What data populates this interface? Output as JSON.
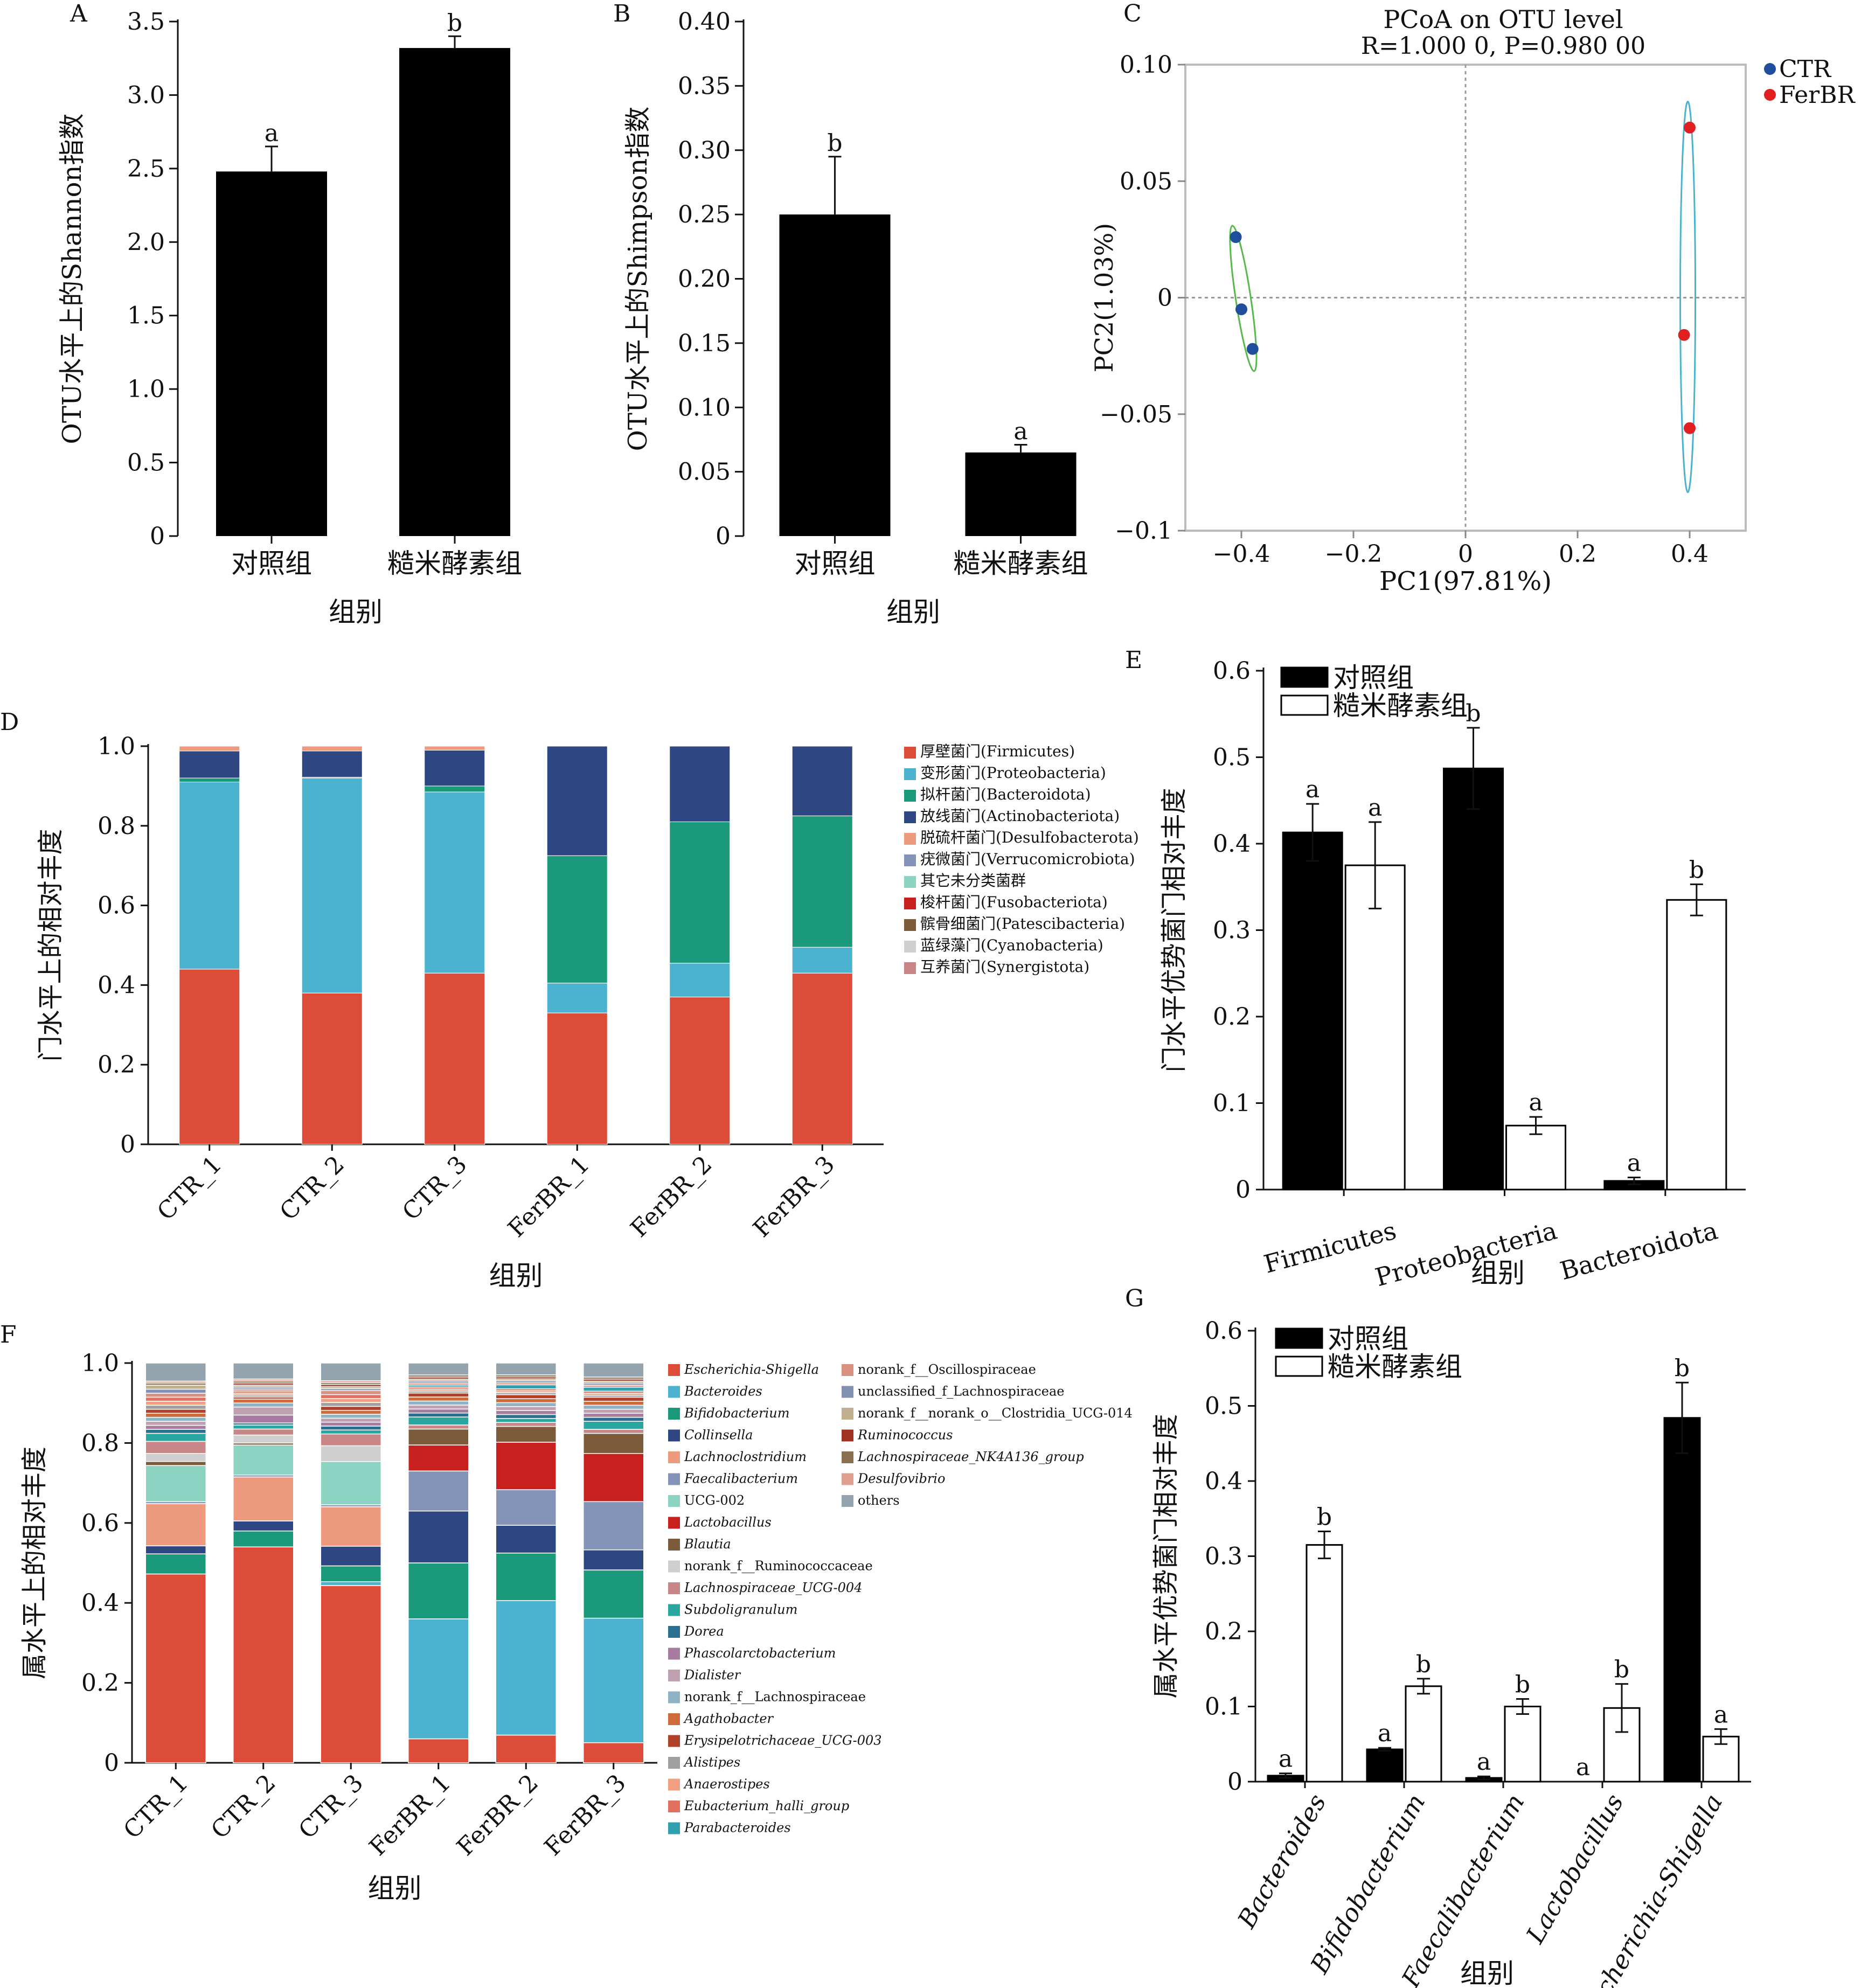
{
  "x_title": "组别",
  "chart_data": [
    {
      "panel": "A",
      "type": "bar",
      "ylabel": "OTU水平上的Shannon指数",
      "xlabel": "组别",
      "categories": [
        "对照组",
        "糙米酵素组"
      ],
      "values": [
        2.48,
        3.32
      ],
      "errors": [
        0.17,
        0.08
      ],
      "letters": [
        "a",
        "b"
      ],
      "ylim": [
        0,
        3.5
      ],
      "yticks": [
        "0",
        "0.5",
        "1.0",
        "1.5",
        "2.0",
        "2.5",
        "3.0",
        "3.5"
      ]
    },
    {
      "panel": "B",
      "type": "bar",
      "ylabel": "OTU水平上的Shimpson指数",
      "xlabel": "组别",
      "categories": [
        "对照组",
        "糙米酵素组"
      ],
      "values": [
        0.25,
        0.065
      ],
      "errors": [
        0.045,
        0.006
      ],
      "letters": [
        "b",
        "a"
      ],
      "ylim": [
        0,
        0.4
      ],
      "yticks": [
        "0",
        "0.05",
        "0.10",
        "0.15",
        "0.20",
        "0.25",
        "0.30",
        "0.35",
        "0.40"
      ]
    },
    {
      "panel": "C",
      "type": "scatter",
      "title": "PCoA on OTU level",
      "subtitle": "R=1.000 0, P=0.980 00",
      "xlabel": "PC1(97.81%)",
      "ylabel": "PC2(1.03%)",
      "xlim": [
        -0.5,
        0.5
      ],
      "ylim": [
        -0.1,
        0.1
      ],
      "xticks": [
        "−0.4",
        "−0.2",
        "0",
        "0.2",
        "0.4"
      ],
      "yticks": [
        "0.10",
        "0.05",
        "0",
        "−0.05",
        "−0.1"
      ],
      "series": [
        {
          "name": "CTR",
          "color": "#1f4e9c",
          "points": [
            [
              -0.41,
              0.026
            ],
            [
              -0.4,
              -0.005
            ],
            [
              -0.38,
              -0.022
            ]
          ]
        },
        {
          "name": "FerBR",
          "color": "#e02020",
          "points": [
            [
              0.4,
              0.073
            ],
            [
              0.39,
              -0.016
            ],
            [
              0.4,
              -0.056
            ]
          ]
        }
      ]
    },
    {
      "panel": "D",
      "type": "stacked-bar",
      "ylabel": "门水平上的相对丰度",
      "xlabel": "组别",
      "categories": [
        "CTR_1",
        "CTR_2",
        "CTR_3",
        "FerBR_1",
        "FerBR_2",
        "FerBR_3"
      ],
      "yticks": [
        "0",
        "0.2",
        "0.4",
        "0.6",
        "0.8",
        "1.0"
      ],
      "series": [
        {
          "name": "厚壁菌门(Firmicutes)",
          "color": "#dd4b39",
          "values": [
            0.44,
            0.38,
            0.43,
            0.33,
            0.37,
            0.43
          ]
        },
        {
          "name": "变形菌门(Proteobacteria)",
          "color": "#4bb3cf",
          "values": [
            0.47,
            0.54,
            0.455,
            0.075,
            0.085,
            0.065
          ]
        },
        {
          "name": "拟杆菌门(Bacteroidota)",
          "color": "#1a9a7a",
          "values": [
            0.01,
            0.002,
            0.015,
            0.32,
            0.355,
            0.33
          ]
        },
        {
          "name": "放线菌门(Actinobacteriota)",
          "color": "#2e4783",
          "values": [
            0.068,
            0.066,
            0.09,
            0.275,
            0.19,
            0.175
          ]
        },
        {
          "name": "脱硫杆菌门(Desulfobacterota)",
          "color": "#ed9a7e",
          "values": [
            0.012,
            0.012,
            0.01,
            0,
            0,
            0
          ]
        },
        {
          "name": "疣微菌门(Verrucomicrobiota)",
          "color": "#8494b8",
          "values": [
            0,
            0,
            0,
            0,
            0,
            0
          ]
        },
        {
          "name": "其它未分类菌群",
          "color": "#8dd3c2",
          "values": [
            0,
            0,
            0,
            0,
            0,
            0
          ]
        },
        {
          "name": "梭杆菌门(Fusobacteriota)",
          "color": "#c81f1f",
          "values": [
            0,
            0,
            0,
            0,
            0,
            0
          ]
        },
        {
          "name": "髌骨细菌门(Patescibacteria)",
          "color": "#7b5b3a",
          "values": [
            0,
            0,
            0,
            0,
            0,
            0
          ]
        },
        {
          "name": "蓝绿藻门(Cyanobacteria)",
          "color": "#cfcfcf",
          "values": [
            0,
            0,
            0,
            0,
            0,
            0
          ]
        },
        {
          "name": "互养菌门(Synergistota)",
          "color": "#c98686",
          "values": [
            0,
            0,
            0,
            0,
            0,
            0
          ]
        }
      ]
    },
    {
      "panel": "E",
      "type": "bar",
      "ylabel": "门水平优势菌门相对丰度",
      "xlabel": "组别",
      "categories": [
        "Firmicutes",
        "Proteobacteria",
        "Bacteroidota"
      ],
      "series": [
        {
          "name": "对照组",
          "values": [
            0.413,
            0.487,
            0.01
          ],
          "errors": [
            0.033,
            0.047,
            0.004
          ],
          "letters": [
            "a",
            "b",
            "a"
          ]
        },
        {
          "name": "糙米酵素组",
          "values": [
            0.375,
            0.074,
            0.335
          ],
          "errors": [
            0.05,
            0.01,
            0.018
          ],
          "letters": [
            "a",
            "a",
            "b"
          ]
        }
      ],
      "ylim": [
        0,
        0.6
      ],
      "yticks": [
        "0",
        "0.1",
        "0.2",
        "0.3",
        "0.4",
        "0.5",
        "0.6"
      ]
    },
    {
      "panel": "F",
      "type": "stacked-bar",
      "ylabel": "属水平上的相对丰度",
      "xlabel": "组别",
      "categories": [
        "CTR_1",
        "CTR_2",
        "CTR_3",
        "FerBR_1",
        "FerBR_2",
        "FerBR_3"
      ],
      "yticks": [
        "0",
        "0.2",
        "0.4",
        "0.6",
        "0.8",
        "1.0"
      ],
      "series": [
        {
          "name": "Escherichia-Shigella",
          "color": "#dd4b39",
          "values": [
            0.47,
            0.54,
            0.45,
            0.06,
            0.07,
            0.05
          ]
        },
        {
          "name": "Bacteroides",
          "color": "#4bb3cf",
          "values": [
            0.0,
            0.0,
            0.01,
            0.3,
            0.34,
            0.31
          ]
        },
        {
          "name": "Bifidobacterium",
          "color": "#1a9a7a",
          "values": [
            0.05,
            0.04,
            0.04,
            0.14,
            0.12,
            0.12
          ]
        },
        {
          "name": "Collinsella",
          "color": "#2e4783",
          "values": [
            0.02,
            0.025,
            0.05,
            0.13,
            0.07,
            0.05
          ]
        },
        {
          "name": "Lachnoclostridium",
          "color": "#ed9a7e",
          "values": [
            0.105,
            0.11,
            0.1,
            0.0,
            0.0,
            0.0
          ]
        },
        {
          "name": "Faecalibacterium",
          "color": "#8494b8",
          "values": [
            0.005,
            0.005,
            0.005,
            0.1,
            0.09,
            0.12
          ]
        },
        {
          "name": "UCG-002",
          "color": "#8dd3c2",
          "values": [
            0.09,
            0.075,
            0.11,
            0.0,
            0.0,
            0.0
          ]
        },
        {
          "name": "Lactobacillus",
          "color": "#c81f1f",
          "values": [
            0.0,
            0.0,
            0.0,
            0.065,
            0.12,
            0.12
          ]
        },
        {
          "name": "Blautia",
          "color": "#7b5b3a",
          "values": [
            0.01,
            0.005,
            0.0,
            0.04,
            0.04,
            0.05
          ]
        },
        {
          "name": "norank_f__Ruminococcaceae",
          "color": "#cfcfcf",
          "values": [
            0.02,
            0.02,
            0.04,
            0.0,
            0.0,
            0.0
          ]
        },
        {
          "name": "Lachnospiraceae_UCG-004",
          "color": "#c98686",
          "values": [
            0.03,
            0.015,
            0.03,
            0.01,
            0.01,
            0.01
          ]
        },
        {
          "name": "Subdoligranulum",
          "color": "#2aa6a0",
          "values": [
            0.02,
            0.01,
            0.01,
            0.02,
            0.01,
            0.02
          ]
        },
        {
          "name": "Dorea",
          "color": "#2a6f8f",
          "values": [
            0.01,
            0.005,
            0.01,
            0.01,
            0.01,
            0.01
          ]
        },
        {
          "name": "Phascolarctobacterium",
          "color": "#a87ca0",
          "values": [
            0.01,
            0.02,
            0.01,
            0.01,
            0.01,
            0.01
          ]
        },
        {
          "name": "Dialister",
          "color": "#bfa0b0",
          "values": [
            0.01,
            0.02,
            0.01,
            0.01,
            0.01,
            0.01
          ]
        },
        {
          "name": "norank_f__Lachnospiraceae",
          "color": "#8fb3c4",
          "values": [
            0.01,
            0.01,
            0.01,
            0.01,
            0.01,
            0.01
          ]
        },
        {
          "name": "Agathobacter",
          "color": "#cf6a3a",
          "values": [
            0.01,
            0.01,
            0.01,
            0.01,
            0.01,
            0.01
          ]
        },
        {
          "name": "Erysipelotrichaceae_UCG-003",
          "color": "#b0402a",
          "values": [
            0.01,
            0.005,
            0.01,
            0.01,
            0.01,
            0.01
          ]
        },
        {
          "name": "Alistipes",
          "color": "#a0a0a0",
          "values": [
            0.01,
            0.005,
            0.01,
            0.005,
            0.005,
            0.005
          ]
        },
        {
          "name": "Anaerostipes",
          "color": "#f0a080",
          "values": [
            0.01,
            0.005,
            0.01,
            0.005,
            0.005,
            0.005
          ]
        },
        {
          "name": "Eubacterium_halli_group",
          "color": "#e07060",
          "values": [
            0.01,
            0.005,
            0.01,
            0.005,
            0.005,
            0.005
          ]
        },
        {
          "name": "Parabacteroides",
          "color": "#30a0b0",
          "values": [
            0.0,
            0.0,
            0.0,
            0.005,
            0.01,
            0.01
          ]
        },
        {
          "name": "norank_f__Oscillospiraceae",
          "color": "#d89080",
          "values": [
            0.01,
            0.005,
            0.01,
            0.005,
            0.005,
            0.005
          ]
        },
        {
          "name": "unclassified_f_Lachnospiraceae",
          "color": "#8090b0",
          "values": [
            0.01,
            0.005,
            0.005,
            0.005,
            0.005,
            0.005
          ]
        },
        {
          "name": "norank_f__norank_o__Clostridia_UCG-014",
          "color": "#c0b090",
          "values": [
            0.01,
            0.005,
            0.005,
            0.005,
            0.005,
            0.005
          ]
        },
        {
          "name": "Ruminococcus",
          "color": "#a03020",
          "values": [
            0.0,
            0.005,
            0.005,
            0.005,
            0.005,
            0.005
          ]
        },
        {
          "name": "Lachnospiraceae_NK4A136_group",
          "color": "#8a7050",
          "values": [
            0.005,
            0.005,
            0.005,
            0.005,
            0.005,
            0.005
          ]
        },
        {
          "name": "Desulfovibrio",
          "color": "#e0a090",
          "values": [
            0.005,
            0.005,
            0.005,
            0.0,
            0.0,
            0.0
          ]
        },
        {
          "name": "others",
          "color": "#94a4ae",
          "values": [
            0.045,
            0.04,
            0.045,
            0.03,
            0.03,
            0.035
          ]
        }
      ]
    },
    {
      "panel": "G",
      "type": "bar",
      "ylabel": "属水平优势菌门相对丰度",
      "xlabel": "组别",
      "categories": [
        "Bacteroides",
        "Bifidobacterium",
        "Faecalibacterium",
        "Lactobacillus",
        "Escherichia-Shigella"
      ],
      "series": [
        {
          "name": "对照组",
          "values": [
            0.008,
            0.043,
            0.005,
            0.0,
            0.484
          ],
          "errors": [
            0.003,
            0.002,
            0.002,
            0.0,
            0.047
          ],
          "letters": [
            "a",
            "a",
            "a",
            "a",
            "b"
          ]
        },
        {
          "name": "糙米酵素组",
          "values": [
            0.315,
            0.127,
            0.1,
            0.098,
            0.06
          ],
          "errors": [
            0.018,
            0.01,
            0.01,
            0.032,
            0.01
          ],
          "letters": [
            "b",
            "b",
            "b",
            "b",
            "a"
          ]
        }
      ],
      "ylim": [
        0,
        0.6
      ],
      "yticks": [
        "0",
        "0.1",
        "0.2",
        "0.3",
        "0.4",
        "0.5",
        "0.6"
      ]
    }
  ]
}
